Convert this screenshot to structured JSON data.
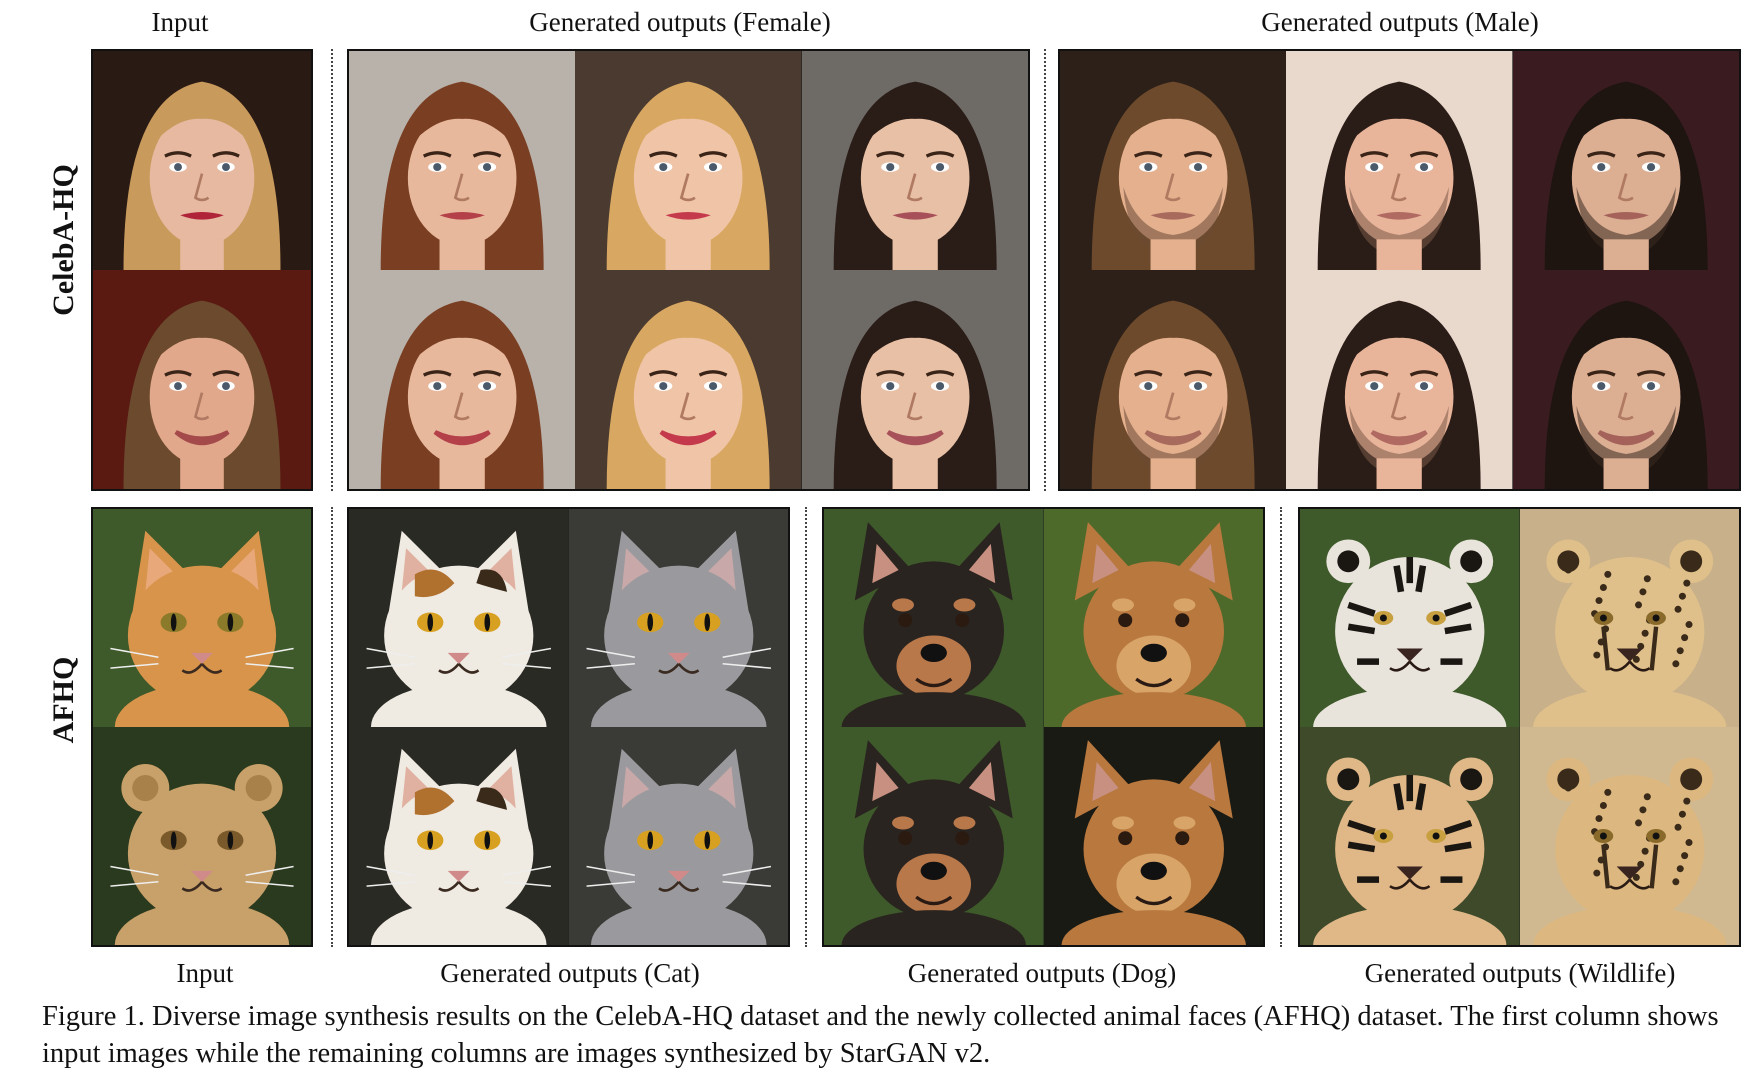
{
  "headers": {
    "input_top": "Input",
    "female": "Generated outputs (Female)",
    "male": "Generated outputs (Male)",
    "input_bottom": "Input",
    "cat": "Generated outputs (Cat)",
    "dog": "Generated outputs (Dog)",
    "wildlife": "Generated outputs (Wildlife)"
  },
  "row_labels": {
    "celeba": "CelebA-HQ",
    "afhq": "AFHQ"
  },
  "caption": "Figure 1. Diverse image synthesis results on the CelebA-HQ dataset and the newly collected animal faces (AFHQ) dataset. The first column shows input images while the remaining columns are images synthesized by StarGAN v2.",
  "tiles": {
    "input_celeba": [
      {
        "kind": "face",
        "bg": "#2a1a14",
        "skin": "#e6b9a0",
        "hair": "#c89a5c",
        "lips": "#b0243a",
        "smile": false
      },
      {
        "kind": "face",
        "bg": "#5a1a12",
        "skin": "#e2a88c",
        "hair": "#6b4a2e",
        "lips": "#a44a4a",
        "smile": true
      }
    ],
    "female": [
      {
        "kind": "face",
        "bg": "#b9b2aa",
        "skin": "#e8b89c",
        "hair": "#7a3e22",
        "lips": "#b4404a",
        "smile": false
      },
      {
        "kind": "face",
        "bg": "#4a3a30",
        "skin": "#f0c4a6",
        "hair": "#d8a862",
        "lips": "#c43a4c",
        "smile": false
      },
      {
        "kind": "face",
        "bg": "#6e6a66",
        "skin": "#e8c0a6",
        "hair": "#2a1c16",
        "lips": "#a8505a",
        "smile": false
      },
      {
        "kind": "face",
        "bg": "#b9b2aa",
        "skin": "#e8b89c",
        "hair": "#7a3e22",
        "lips": "#b4404a",
        "smile": true
      },
      {
        "kind": "face",
        "bg": "#4a3a30",
        "skin": "#f0c4a6",
        "hair": "#d8a862",
        "lips": "#c43a4c",
        "smile": true
      },
      {
        "kind": "face",
        "bg": "#6e6a66",
        "skin": "#e8c0a6",
        "hair": "#2a1c16",
        "lips": "#a8505a",
        "smile": true
      }
    ],
    "male": [
      {
        "kind": "face",
        "bg": "#2c2018",
        "skin": "#e4b08e",
        "hair": "#6e4a2c",
        "lips": "#a86a5c",
        "smile": false,
        "beard": "#6a4a34"
      },
      {
        "kind": "face",
        "bg": "#e9d8cc",
        "skin": "#e8b49a",
        "hair": "#2a1c16",
        "lips": "#b06a62",
        "smile": false,
        "beard": "#7a5a48"
      },
      {
        "kind": "face",
        "bg": "#3a1c20",
        "skin": "#dcae92",
        "hair": "#1e1410",
        "lips": "#a4625a",
        "smile": false,
        "beard": "#3a2a20"
      },
      {
        "kind": "face",
        "bg": "#2c2018",
        "skin": "#e4b08e",
        "hair": "#6e4a2c",
        "lips": "#a86a5c",
        "smile": true,
        "beard": "#6a4a34"
      },
      {
        "kind": "face",
        "bg": "#e9d8cc",
        "skin": "#e8b49a",
        "hair": "#2a1c16",
        "lips": "#b06a62",
        "smile": true,
        "beard": "#7a5a48"
      },
      {
        "kind": "face",
        "bg": "#3a1c20",
        "skin": "#dcae92",
        "hair": "#1e1410",
        "lips": "#a4625a",
        "smile": true,
        "beard": "#3a2a20"
      }
    ],
    "input_afhq": [
      {
        "kind": "cat",
        "bg": "#3e5a2a",
        "fur": "#d8944a",
        "ear": "#e8a87a",
        "eye": "#8a7a2a"
      },
      {
        "kind": "lion",
        "bg": "#2a3a1e",
        "fur": "#c8a06a",
        "ear": "#a8804a",
        "eye": "#7a5a2a"
      }
    ],
    "cat": [
      {
        "kind": "cat",
        "bg": "#2a2a24",
        "fur": "#efeae2",
        "ear": "#e0b0a0",
        "eye": "#d8a020",
        "patch": "#b0702e"
      },
      {
        "kind": "cat",
        "bg": "#3a3a36",
        "fur": "#9a9a9e",
        "ear": "#c8a8a8",
        "eye": "#d8a020"
      },
      {
        "kind": "cat",
        "bg": "#2a2a24",
        "fur": "#efeae2",
        "ear": "#e0b0a0",
        "eye": "#d8a020",
        "patch": "#b0702e"
      },
      {
        "kind": "cat",
        "bg": "#3a3a36",
        "fur": "#9a9a9e",
        "ear": "#c8a8a8",
        "eye": "#d8a020"
      }
    ],
    "dog": [
      {
        "kind": "dog",
        "bg": "#3e5a2a",
        "fur": "#2a2420",
        "tan": "#b8784a",
        "eye": "#2a1a10"
      },
      {
        "kind": "dog",
        "bg": "#4e6a2a",
        "fur": "#b8783e",
        "tan": "#d8a468",
        "eye": "#2a1a10"
      },
      {
        "kind": "dog",
        "bg": "#3e5a2a",
        "fur": "#2a2420",
        "tan": "#b8784a",
        "eye": "#2a1a10"
      },
      {
        "kind": "dog",
        "bg": "#1a1a14",
        "fur": "#b8783e",
        "tan": "#d8a468",
        "eye": "#2a1a10"
      }
    ],
    "wildlife": [
      {
        "kind": "tiger",
        "bg": "#3e5a2a",
        "fur": "#e8e4dc",
        "stripe": "#1a1612",
        "eye": "#c8a040"
      },
      {
        "kind": "cheetah",
        "bg": "#c8b08a",
        "fur": "#e0c08a",
        "stripe": "#3a2a1a",
        "eye": "#8a6a2a"
      },
      {
        "kind": "tiger",
        "bg": "#3e4a2a",
        "fur": "#e0b888",
        "stripe": "#1a1612",
        "eye": "#c8a040"
      },
      {
        "kind": "cheetah",
        "bg": "#d0b890",
        "fur": "#dcb880",
        "stripe": "#3a2a1a",
        "eye": "#8a6a2a"
      }
    ]
  }
}
